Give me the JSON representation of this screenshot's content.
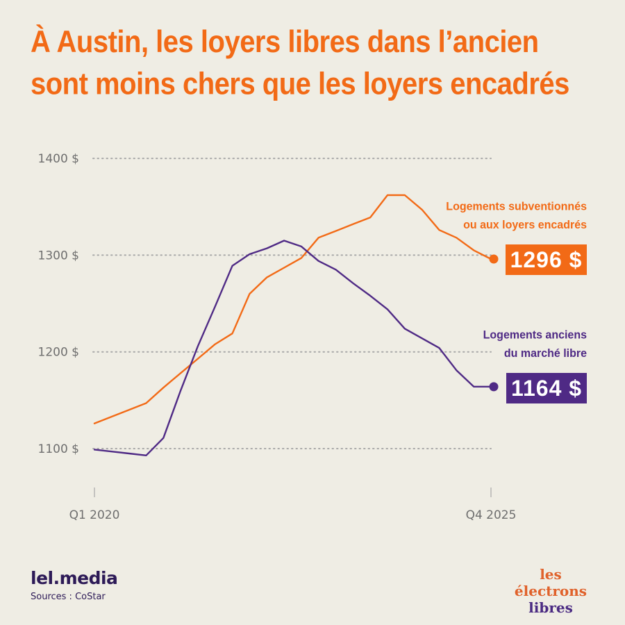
{
  "title": {
    "line1": "À Austin, les loyers libres dans l’ancien",
    "line2": "sont moins chers que les loyers encadrés"
  },
  "colors": {
    "orange": "#F26A16",
    "purple": "#4F2A85",
    "grid": "#A8A8A8",
    "background": "#EFEDE4"
  },
  "chart_data": {
    "type": "line",
    "title": "À Austin, les loyers libres dans l’ancien sont moins chers que les loyers encadrés",
    "xlabel": "",
    "ylabel": "",
    "x_tick_labels": [
      "Q1 2020",
      "Q4 2025"
    ],
    "x": [
      "Q1 2020",
      "Q2 2020",
      "Q3 2020",
      "Q4 2020",
      "Q1 2021",
      "Q2 2021",
      "Q3 2021",
      "Q4 2021",
      "Q1 2022",
      "Q2 2022",
      "Q3 2022",
      "Q4 2022",
      "Q1 2023",
      "Q2 2023",
      "Q3 2023",
      "Q4 2023",
      "Q1 2024",
      "Q2 2024",
      "Q3 2024",
      "Q4 2024",
      "Q1 2025",
      "Q2 2025",
      "Q3 2025",
      "Q4 2025"
    ],
    "y_ticks": [
      1100,
      1200,
      1300,
      1400
    ],
    "y_tick_labels": [
      "1100 $",
      "1200 $",
      "1300 $",
      "1400 $"
    ],
    "ylim": [
      1060,
      1410
    ],
    "grid": true,
    "series": [
      {
        "name": "Logements subventionnés ou aux loyers encadrés",
        "color": "#F26A16",
        "values": [
          1126,
          1133,
          1140,
          1147,
          1163,
          1178,
          1193,
          1208,
          1219,
          1260,
          1277,
          1287,
          1297,
          1318,
          1325,
          1332,
          1339,
          1362,
          1362,
          1347,
          1326,
          1318,
          1305,
          1296
        ],
        "end_label": "1296 $"
      },
      {
        "name": "Logements anciens du marché libre",
        "color": "#4F2A85",
        "values": [
          1099,
          1097,
          1095,
          1093,
          1111,
          1160,
          1206,
          1247,
          1289,
          1301,
          1307,
          1315,
          1309,
          1294,
          1285,
          1271,
          1258,
          1244,
          1224,
          1214,
          1204,
          1181,
          1164,
          1164
        ],
        "end_label": "1164 $"
      }
    ]
  },
  "labels": {
    "orange_line1": "Logements subventionnés",
    "orange_line2": "ou aux loyers encadrés",
    "orange_value": "1296 $",
    "purple_line1": "Logements anciens",
    "purple_line2": "du marché libre",
    "purple_value": "1164 $"
  },
  "footer": {
    "brand": "lel.media",
    "sources": "Sources : CoStar",
    "logo_line1": "les électrons",
    "logo_line2": "libres"
  }
}
